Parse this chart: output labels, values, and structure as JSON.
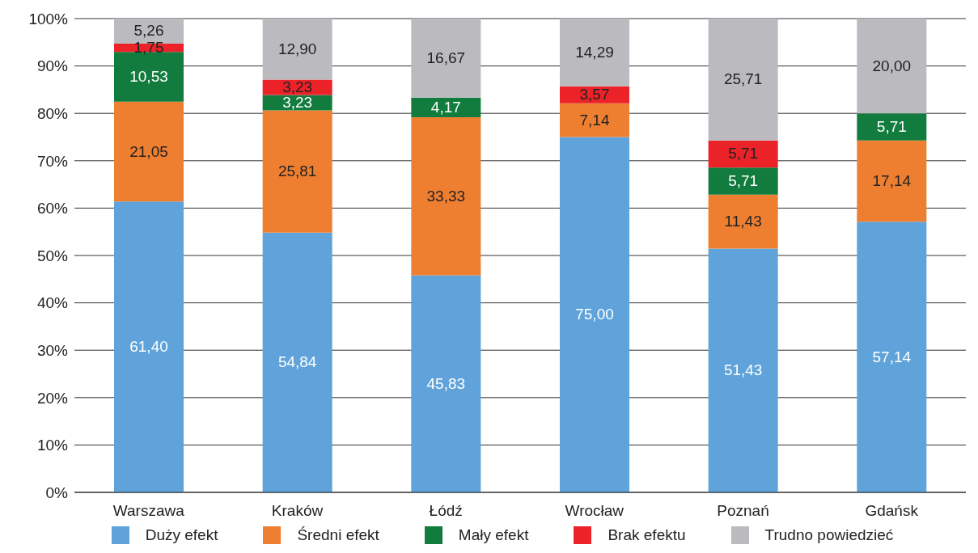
{
  "chart_data": {
    "type": "bar",
    "stacked": true,
    "categories": [
      "Warszawa",
      "Kraków",
      "Łódź",
      "Wrocław",
      "Poznań",
      "Gdańsk"
    ],
    "series": [
      {
        "name": "Duży efekt",
        "color": "#5fa3da",
        "values": [
          61.4,
          54.84,
          45.83,
          75.0,
          51.43,
          57.14
        ],
        "value_labels": [
          "61,40",
          "54,84",
          "45,83",
          "75,00",
          "51,43",
          "57,14"
        ]
      },
      {
        "name": "Średni efekt",
        "color": "#ef7f30",
        "values": [
          21.05,
          25.81,
          33.33,
          7.14,
          11.43,
          17.14
        ],
        "value_labels": [
          "21,05",
          "25,81",
          "33,33",
          "7,14",
          "11,43",
          "17,14"
        ]
      },
      {
        "name": "Mały efekt",
        "color": "#117c3d",
        "values": [
          10.53,
          3.23,
          4.17,
          null,
          5.71,
          5.71
        ],
        "value_labels": [
          "10,53",
          "3,23",
          "4,17",
          null,
          "5,71",
          "5,71"
        ]
      },
      {
        "name": "Brak efektu",
        "color": "#ec2229",
        "values": [
          1.75,
          3.23,
          null,
          3.57,
          5.71,
          null
        ],
        "value_labels": [
          "1,75",
          "3,23",
          null,
          "3,57",
          "5,71",
          null
        ]
      },
      {
        "name": "Trudno powiedzieć",
        "color": "#bbbbbf",
        "values": [
          5.26,
          12.9,
          16.67,
          14.29,
          25.71,
          20.0
        ],
        "value_labels": [
          "5,26",
          "12,90",
          "16,67",
          "14,29",
          "25,71",
          "20,00"
        ]
      }
    ],
    "ylim": [
      0,
      100
    ],
    "yticks": [
      {
        "value": 0,
        "label": "0%"
      },
      {
        "value": 10,
        "label": "10%"
      },
      {
        "value": 20,
        "label": "20%"
      },
      {
        "value": 30,
        "label": "30%"
      },
      {
        "value": 40,
        "label": "40%"
      },
      {
        "value": 50,
        "label": "50%"
      },
      {
        "value": 60,
        "label": "60%"
      },
      {
        "value": 70,
        "label": "70%"
      },
      {
        "value": 80,
        "label": "80%"
      },
      {
        "value": 90,
        "label": "90%"
      },
      {
        "value": 100,
        "label": "100%"
      }
    ],
    "grid": "y",
    "legend": "bottom"
  }
}
